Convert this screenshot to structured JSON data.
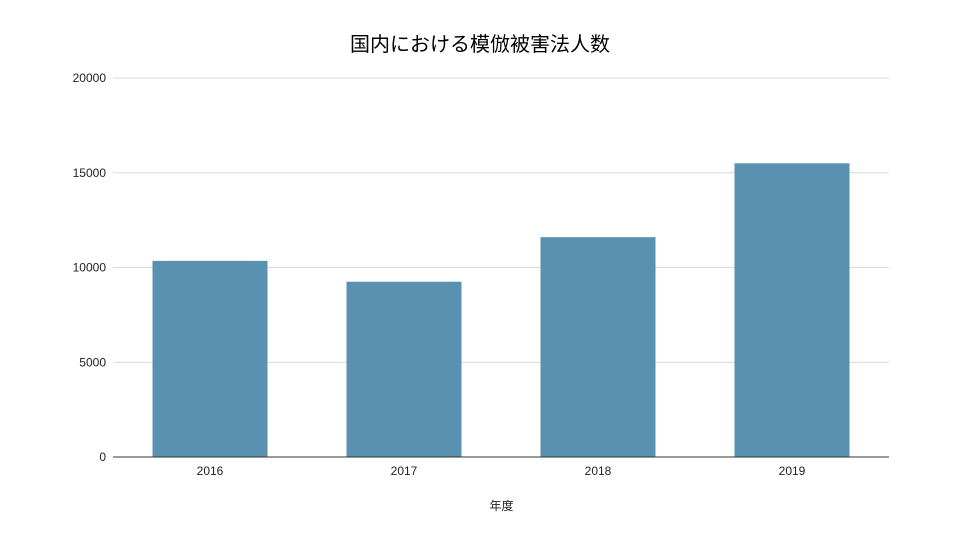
{
  "chart_data": {
    "type": "bar",
    "title": "国内における模倣被害法人数",
    "xlabel": "年度",
    "ylabel": "",
    "categories": [
      "2016",
      "2017",
      "2018",
      "2019"
    ],
    "values": [
      10350,
      9250,
      11600,
      15500
    ],
    "ylim": [
      0,
      20000
    ],
    "yticks": [
      "0",
      "5000",
      "10000",
      "15000",
      "20000"
    ],
    "grid": true,
    "legend": "none",
    "colors": {
      "bar": "#5a91b0",
      "grid": "#d9d9d9",
      "axis": "#333333"
    }
  }
}
